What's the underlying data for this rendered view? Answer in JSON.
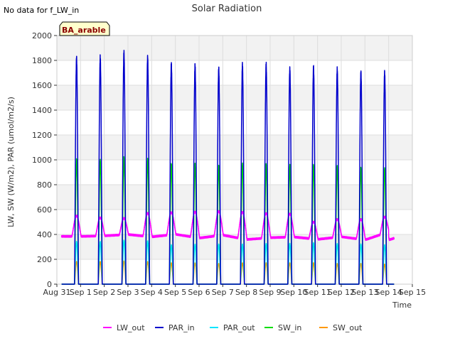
{
  "no_data_note": "No data for f_LW_in",
  "site_label": "BA_arable",
  "chart_data": {
    "type": "line",
    "title": "Solar Radiation",
    "xlabel": "Time",
    "ylabel": "LW, SW (W/m2), PAR (umol/m2/s)",
    "ylim": [
      0,
      2000
    ],
    "yticks": [
      0,
      200,
      400,
      600,
      800,
      1000,
      1200,
      1400,
      1600,
      1800,
      2000
    ],
    "xlim": [
      0,
      15
    ],
    "xtick_labels": [
      "Aug 31",
      "Sep 1",
      "Sep 2",
      "Sep 3",
      "Sep 4",
      "Sep 5",
      "Sep 6",
      "Sep 7",
      "Sep 8",
      "Sep 9",
      "Sep 10",
      "Sep 11",
      "Sep 12",
      "Sep 13",
      "Sep 14",
      "Sep 15"
    ],
    "x_unit": "days since Aug 31 00:00",
    "grid": true,
    "legend_position": "bottom",
    "daily_peak_day_offset": [
      0.83,
      1.83,
      2.83,
      3.83,
      4.83,
      5.83,
      6.83,
      7.83,
      8.83,
      9.83,
      10.83,
      11.83,
      12.83,
      13.83
    ],
    "series": [
      {
        "name": "LW_out",
        "color": "#ff00ff",
        "night_values": [
          385,
          385,
          390,
          400,
          380,
          400,
          370,
          395,
          360,
          375,
          380,
          360,
          380,
          355,
          420
        ],
        "day_peaks": [
          550,
          535,
          530,
          570,
          575,
          580,
          585,
          580,
          570,
          565,
          500,
          520,
          520,
          540
        ]
      },
      {
        "name": "PAR_in",
        "color": "#0000cc",
        "day_peaks": [
          1820,
          1820,
          1860,
          1825,
          1770,
          1760,
          1735,
          1765,
          1765,
          1730,
          1745,
          1725,
          1705,
          1705
        ]
      },
      {
        "name": "PAR_out",
        "color": "#00e5ff",
        "day_peaks": [
          340,
          340,
          350,
          345,
          315,
          320,
          320,
          320,
          325,
          325,
          330,
          325,
          320,
          315
        ]
      },
      {
        "name": "SW_in",
        "color": "#00dd00",
        "day_peaks": [
          1000,
          995,
          1015,
          1000,
          965,
          965,
          950,
          965,
          960,
          950,
          955,
          945,
          930,
          930
        ]
      },
      {
        "name": "SW_out",
        "color": "#ff9900",
        "day_peaks": [
          180,
          180,
          185,
          180,
          170,
          170,
          165,
          170,
          170,
          170,
          170,
          165,
          165,
          160
        ]
      }
    ]
  }
}
